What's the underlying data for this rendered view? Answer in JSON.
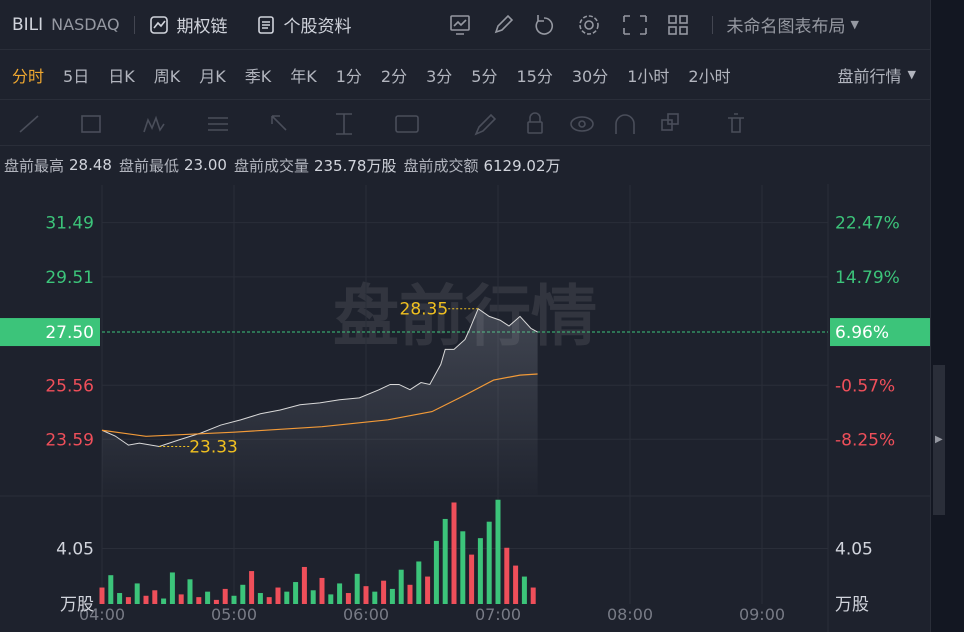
{
  "header": {
    "symbol": "BILI",
    "exchange": "NASDAQ",
    "options": "期权链",
    "profile": "个股资料",
    "layout": "未命名图表布局"
  },
  "timeframes": {
    "items": [
      "分时",
      "5日",
      "日K",
      "周K",
      "月K",
      "季K",
      "年K",
      "1分",
      "2分",
      "3分",
      "5分",
      "15分",
      "30分",
      "1小时",
      "2小时"
    ],
    "active": 0,
    "session": "盘前行情"
  },
  "stats": [
    {
      "label": "盘前最高",
      "value": "28.48"
    },
    {
      "label": "盘前最低",
      "value": "23.00"
    },
    {
      "label": "盘前成交量",
      "value": "235.78万股"
    },
    {
      "label": "盘前成交额",
      "value": "6129.02万"
    }
  ],
  "chart": {
    "watermark": "盘前行情",
    "xlim": [
      0,
      330
    ],
    "xticks": [
      {
        "value": 0,
        "label": "04:00"
      },
      {
        "value": 60,
        "label": "05:00"
      },
      {
        "value": 120,
        "label": "06:00"
      },
      {
        "value": 180,
        "label": "07:00"
      },
      {
        "value": 240,
        "label": "08:00"
      },
      {
        "value": 300,
        "label": "09:00"
      }
    ],
    "ylim": [
      21.56,
      32.86
    ],
    "yticks": [
      31.49,
      29.51,
      {
        "value": 27.5,
        "label": "27.50"
      },
      25.56,
      23.59
    ],
    "pct_ticks": [
      {
        "value": 22.47,
        "label": "22.47%"
      },
      {
        "value": 14.79,
        "label": "14.79%"
      },
      {
        "value": 6.96,
        "label": "6.96%"
      },
      {
        "value": -0.57,
        "label": "-0.57%"
      },
      {
        "value": -8.25,
        "label": "-8.25%"
      }
    ],
    "current_tick": 2,
    "price": {
      "color": "#d9d9d9",
      "x": [
        0,
        6,
        12,
        17,
        26,
        35,
        45,
        54,
        63,
        72,
        81,
        90,
        99,
        108,
        117,
        126,
        131,
        135,
        140,
        145,
        149,
        154,
        156,
        160,
        165,
        167,
        171,
        176,
        181,
        185,
        190,
        195,
        198
      ],
      "values": [
        23.92,
        23.71,
        23.38,
        23.45,
        23.33,
        23.57,
        23.82,
        24.11,
        24.3,
        24.52,
        24.66,
        24.85,
        24.92,
        25.03,
        25.1,
        25.4,
        25.59,
        25.59,
        25.4,
        25.66,
        25.59,
        26.32,
        26.87,
        26.87,
        27.23,
        27.58,
        28.35,
        28.07,
        27.93,
        27.72,
        28.07,
        27.63,
        27.5
      ]
    },
    "average": {
      "color": "#f29a38",
      "x": [
        0,
        20,
        60,
        100,
        130,
        150,
        165,
        178,
        190,
        198
      ],
      "values": [
        23.92,
        23.7,
        23.85,
        24.05,
        24.3,
        24.6,
        25.2,
        25.75,
        25.93,
        25.97
      ]
    },
    "high": {
      "x": 171,
      "value": 28.35,
      "label": "28.35"
    },
    "low": {
      "x": 26,
      "value": 23.33,
      "label": "23.33"
    },
    "volume": {
      "unit": "万股",
      "ylim": [
        0,
        7.8
      ],
      "yticks": [
        {
          "value": 4.05,
          "label": "4.05"
        }
      ],
      "up_color": "#3cc47a",
      "down_color": "#ef4f5a",
      "x": [
        0,
        4,
        8,
        12,
        16,
        20,
        24,
        28,
        32,
        36,
        40,
        44,
        48,
        52,
        56,
        60,
        64,
        68,
        72,
        76,
        80,
        84,
        88,
        92,
        96,
        100,
        104,
        108,
        112,
        116,
        120,
        124,
        128,
        132,
        136,
        140,
        144,
        148,
        152,
        156,
        160,
        164,
        168,
        172,
        176,
        180,
        184,
        188,
        192,
        196
      ],
      "values": [
        1.2,
        2.1,
        0.8,
        0.5,
        1.5,
        0.6,
        1.0,
        0.4,
        2.3,
        0.7,
        1.8,
        0.5,
        0.9,
        0.3,
        1.1,
        0.6,
        1.4,
        2.4,
        0.8,
        0.5,
        1.2,
        0.9,
        1.6,
        2.7,
        1.0,
        1.9,
        0.7,
        1.5,
        0.8,
        2.2,
        1.3,
        0.9,
        1.7,
        1.1,
        2.5,
        1.4,
        3.1,
        2.0,
        4.6,
        6.2,
        7.4,
        5.3,
        3.6,
        4.8,
        6.0,
        7.6,
        4.1,
        2.8,
        2.0,
        1.2
      ],
      "up": [
        false,
        true,
        true,
        false,
        true,
        false,
        false,
        true,
        true,
        false,
        true,
        false,
        true,
        false,
        false,
        true,
        true,
        false,
        true,
        false,
        false,
        true,
        true,
        false,
        true,
        false,
        true,
        true,
        false,
        true,
        false,
        true,
        false,
        true,
        true,
        false,
        true,
        false,
        true,
        true,
        false,
        true,
        false,
        true,
        true,
        true,
        false,
        false,
        true,
        false
      ]
    }
  }
}
